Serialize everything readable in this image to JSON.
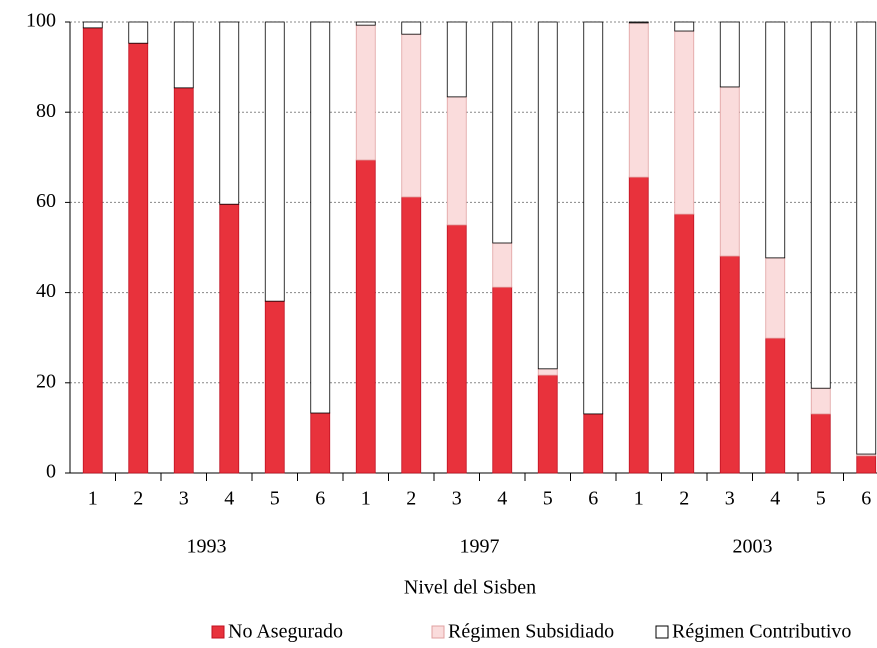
{
  "chart_data": {
    "type": "stacked_bar",
    "x_label": "Nivel del Sisben",
    "categories": [
      "1",
      "2",
      "3",
      "4",
      "5",
      "6",
      "1",
      "2",
      "3",
      "4",
      "5",
      "6",
      "1",
      "2",
      "3",
      "4",
      "5",
      "6"
    ],
    "groups": [
      "1993",
      "1997",
      "2003"
    ],
    "series": [
      {
        "name": "No Asegurado",
        "color": "#e8323c",
        "values": [
          98.7,
          95.3,
          85.4,
          59.6,
          38.1,
          13.3,
          69.4,
          61.2,
          55.0,
          41.2,
          21.7,
          13.1,
          65.6,
          57.4,
          48.1,
          29.9,
          13.1,
          3.8
        ]
      },
      {
        "name": "Régimen Subsidiado",
        "color": "#fadcdc",
        "values": [
          0,
          0,
          0,
          0,
          0,
          0,
          29.9,
          36.1,
          28.4,
          9.8,
          1.4,
          0,
          34.2,
          40.6,
          37.5,
          17.8,
          5.7,
          0.4
        ]
      },
      {
        "name": "Régimen Contributivo",
        "color": "#ffffff",
        "values": [
          1.3,
          4.7,
          14.6,
          40.4,
          61.9,
          86.7,
          0.7,
          2.7,
          16.6,
          49.0,
          76.9,
          86.9,
          0.2,
          2.0,
          14.4,
          52.3,
          81.2,
          95.8
        ]
      }
    ],
    "ylim": [
      0,
      100
    ],
    "yticks": [
      0,
      20,
      40,
      60,
      80,
      100
    ],
    "grid": true,
    "legend": "bottom"
  }
}
